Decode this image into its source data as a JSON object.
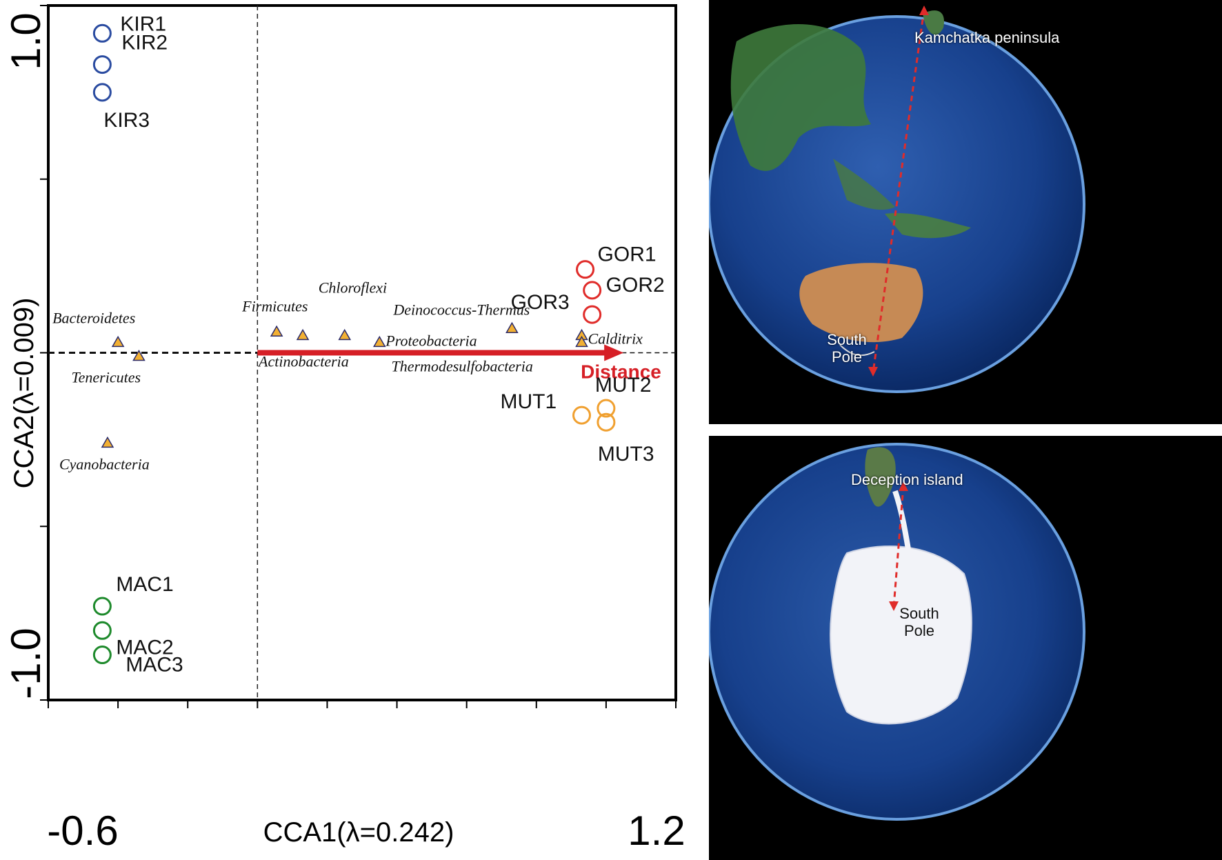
{
  "chart_data": {
    "type": "scatter",
    "xlabel": "CCA1(λ=0.242)",
    "ylabel": "CCA2(λ=0.009)",
    "xtick_labels": [
      "-0.6",
      "1.2"
    ],
    "ytick_labels": [
      "1.0",
      "-1.0"
    ],
    "xlim": [
      -0.6,
      1.2
    ],
    "ylim": [
      -1.0,
      1.0
    ],
    "sites": [
      {
        "label": "KIR1",
        "group": "KIR",
        "x": -0.445,
        "y": 0.92
      },
      {
        "label": "KIR2",
        "group": "KIR",
        "x": -0.445,
        "y": 0.83
      },
      {
        "label": "KIR3",
        "group": "KIR",
        "x": -0.445,
        "y": 0.75
      },
      {
        "label": "GOR1",
        "group": "GOR",
        "x": 0.94,
        "y": 0.24
      },
      {
        "label": "GOR2",
        "group": "GOR",
        "x": 0.96,
        "y": 0.18
      },
      {
        "label": "GOR3",
        "group": "GOR",
        "x": 0.96,
        "y": 0.11
      },
      {
        "label": "MUT1",
        "group": "MUT",
        "x": 0.93,
        "y": -0.18
      },
      {
        "label": "MUT2",
        "group": "MUT",
        "x": 1.0,
        "y": -0.16
      },
      {
        "label": "MUT3",
        "group": "MUT",
        "x": 1.0,
        "y": -0.2
      },
      {
        "label": "MAC1",
        "group": "MAC",
        "x": -0.445,
        "y": -0.73
      },
      {
        "label": "MAC2",
        "group": "MAC",
        "x": -0.445,
        "y": -0.8
      },
      {
        "label": "MAC3",
        "group": "MAC",
        "x": -0.445,
        "y": -0.87
      }
    ],
    "species": [
      {
        "name": "Bacteroidetes",
        "x": -0.4,
        "y": 0.03
      },
      {
        "name": "Tenericutes",
        "x": -0.34,
        "y": -0.01
      },
      {
        "name": "Cyanobacteria",
        "x": -0.43,
        "y": -0.26
      },
      {
        "name": "Firmicutes",
        "x": 0.055,
        "y": 0.06
      },
      {
        "name": "Actinobacteria",
        "x": 0.13,
        "y": 0.05
      },
      {
        "name": "Chloroflexi",
        "x": 0.25,
        "y": 0.05
      },
      {
        "name": "Proteobacteria",
        "x": 0.35,
        "y": 0.03
      },
      {
        "name": "Deinococcus-Thermus",
        "x": 0.73,
        "y": 0.07
      },
      {
        "name": "Calditrix",
        "x": 0.93,
        "y": 0.05
      },
      {
        "name": "Thermodesulfobacteria",
        "x": 0.93,
        "y": 0.03
      }
    ],
    "env_vector": {
      "label": "Distance",
      "x": 1.05,
      "y": 0.0
    },
    "colors": {
      "KIR": "#2a4ba0",
      "GOR": "#e02c2a",
      "MUT": "#f0a030",
      "MAC": "#1e8a2c",
      "species_fill": "#f2b033",
      "species_edge": "#2a2a6a",
      "vector": "#d61f26"
    }
  },
  "maps": [
    {
      "label": "Kamchatka peninsula",
      "pole_label": "South\nPole"
    },
    {
      "label": "Deception island",
      "pole_label": "South\nPole"
    }
  ]
}
